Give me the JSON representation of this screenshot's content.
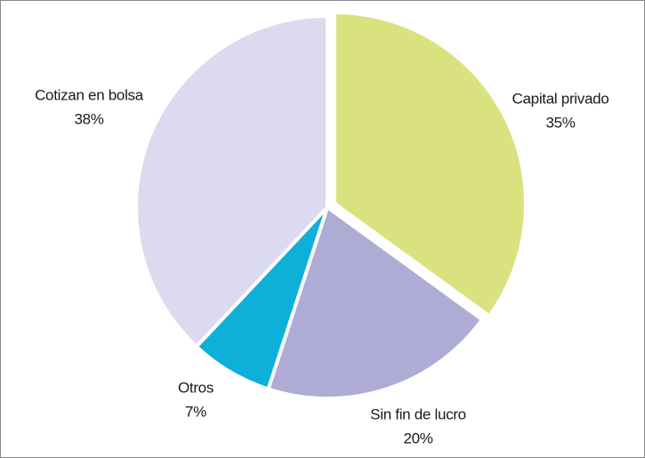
{
  "chart_data": {
    "type": "pie",
    "categories": [
      "Capital privado",
      "Sin fin de lucro",
      "Otros",
      "Cotizan en bolsa"
    ],
    "values": [
      35,
      20,
      7,
      38
    ],
    "value_labels": [
      "35%",
      "20%",
      "7%",
      "38%"
    ],
    "colors": [
      "#d9e27f",
      "#aeacd4",
      "#0db0d8",
      "#dcdaee"
    ]
  }
}
